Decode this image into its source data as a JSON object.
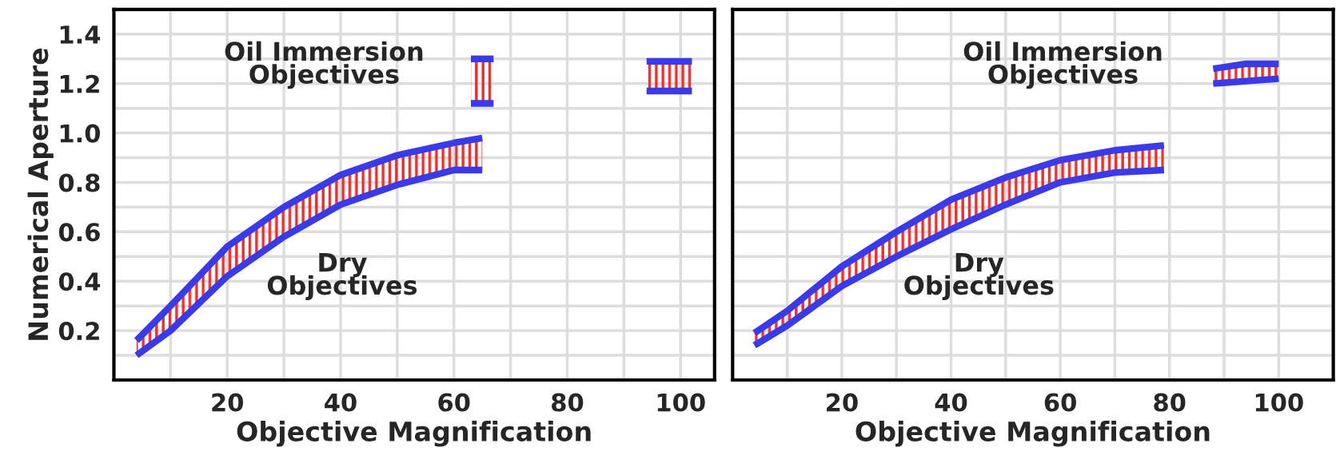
{
  "chart_data": [
    {
      "type": "line",
      "xlabel": "Objective Magnification",
      "ylabel": "Numerical Aperture",
      "xlim": [
        0,
        106
      ],
      "ylim": [
        0,
        1.5
      ],
      "xticks": [
        {
          "value": 10,
          "label": null
        },
        20,
        {
          "value": 30,
          "label": null
        },
        40,
        {
          "value": 50,
          "label": null
        },
        60,
        {
          "value": 70,
          "label": null
        },
        80,
        {
          "value": 90,
          "label": null
        },
        100
      ],
      "yticks": [
        {
          "value": 0.1,
          "label": null
        },
        0.2,
        {
          "value": 0.3,
          "label": null
        },
        0.4,
        {
          "value": 0.5,
          "label": null
        },
        0.6,
        {
          "value": 0.7,
          "label": null
        },
        0.8,
        {
          "value": 0.9,
          "label": null
        },
        {
          "value": 1.0,
          "label": "1.0"
        },
        {
          "value": 1.1,
          "label": null
        },
        1.2,
        {
          "value": 1.3,
          "label": null
        },
        1.4
      ],
      "grid": true,
      "series": [
        {
          "color": "#3a3ae8",
          "x": [
            4,
            10,
            20,
            30,
            40,
            50,
            60,
            65
          ],
          "values": [
            0.16,
            0.3,
            0.54,
            0.7,
            0.83,
            0.91,
            0.96,
            0.98
          ]
        },
        {
          "color": "#3a3ae8",
          "x": [
            4,
            10,
            20,
            30,
            40,
            50,
            60,
            65
          ],
          "values": [
            0.1,
            0.2,
            0.42,
            0.58,
            0.71,
            0.79,
            0.85,
            0.85
          ]
        },
        {
          "color": "#3a3ae8",
          "x": [
            63,
            67
          ],
          "values": [
            1.3,
            1.3
          ]
        },
        {
          "color": "#3a3ae8",
          "x": [
            63,
            67
          ],
          "values": [
            1.12,
            1.12
          ]
        },
        {
          "color": "#3a3ae8",
          "x": [
            94,
            102
          ],
          "values": [
            1.29,
            1.29
          ]
        },
        {
          "color": "#3a3ae8",
          "x": [
            94,
            102
          ],
          "values": [
            1.17,
            1.17
          ]
        }
      ],
      "annotations": [
        "Oil Immersion\nObjectives",
        "Dry\nObjectives"
      ]
    },
    {
      "type": "line",
      "xlabel": "Objective Magnification",
      "tick_labels": "x",
      "xlim": [
        0,
        110
      ],
      "ylim": [
        0,
        1.5
      ],
      "xticks": [
        {
          "value": 10,
          "label": null
        },
        20,
        {
          "value": 30,
          "label": null
        },
        40,
        {
          "value": 50,
          "label": null
        },
        60,
        {
          "value": 70,
          "label": null
        },
        80,
        {
          "value": 90,
          "label": null
        },
        100
      ],
      "yticks": [
        0.1,
        0.2,
        0.3,
        0.4,
        0.5,
        0.6,
        0.7,
        0.8,
        0.9,
        1.0,
        1.1,
        1.2,
        1.3,
        1.4
      ],
      "grid": true,
      "series": [
        {
          "color": "#3a3ae8",
          "x": [
            4,
            10,
            20,
            30,
            40,
            50,
            60,
            70,
            79
          ],
          "values": [
            0.19,
            0.28,
            0.46,
            0.6,
            0.73,
            0.82,
            0.89,
            0.93,
            0.95
          ]
        },
        {
          "color": "#3a3ae8",
          "x": [
            4,
            10,
            20,
            30,
            40,
            50,
            60,
            70,
            79
          ],
          "values": [
            0.14,
            0.22,
            0.38,
            0.5,
            0.61,
            0.71,
            0.8,
            0.84,
            0.85
          ]
        },
        {
          "color": "#3a3ae8",
          "x": [
            88,
            94,
            100
          ],
          "values": [
            1.26,
            1.28,
            1.28
          ]
        },
        {
          "color": "#3a3ae8",
          "x": [
            88,
            94,
            100
          ],
          "values": [
            1.2,
            1.21,
            1.22
          ]
        }
      ],
      "annotations": [
        "Oil Immersion\nObjectives",
        "Dry\nObjectives"
      ]
    }
  ]
}
